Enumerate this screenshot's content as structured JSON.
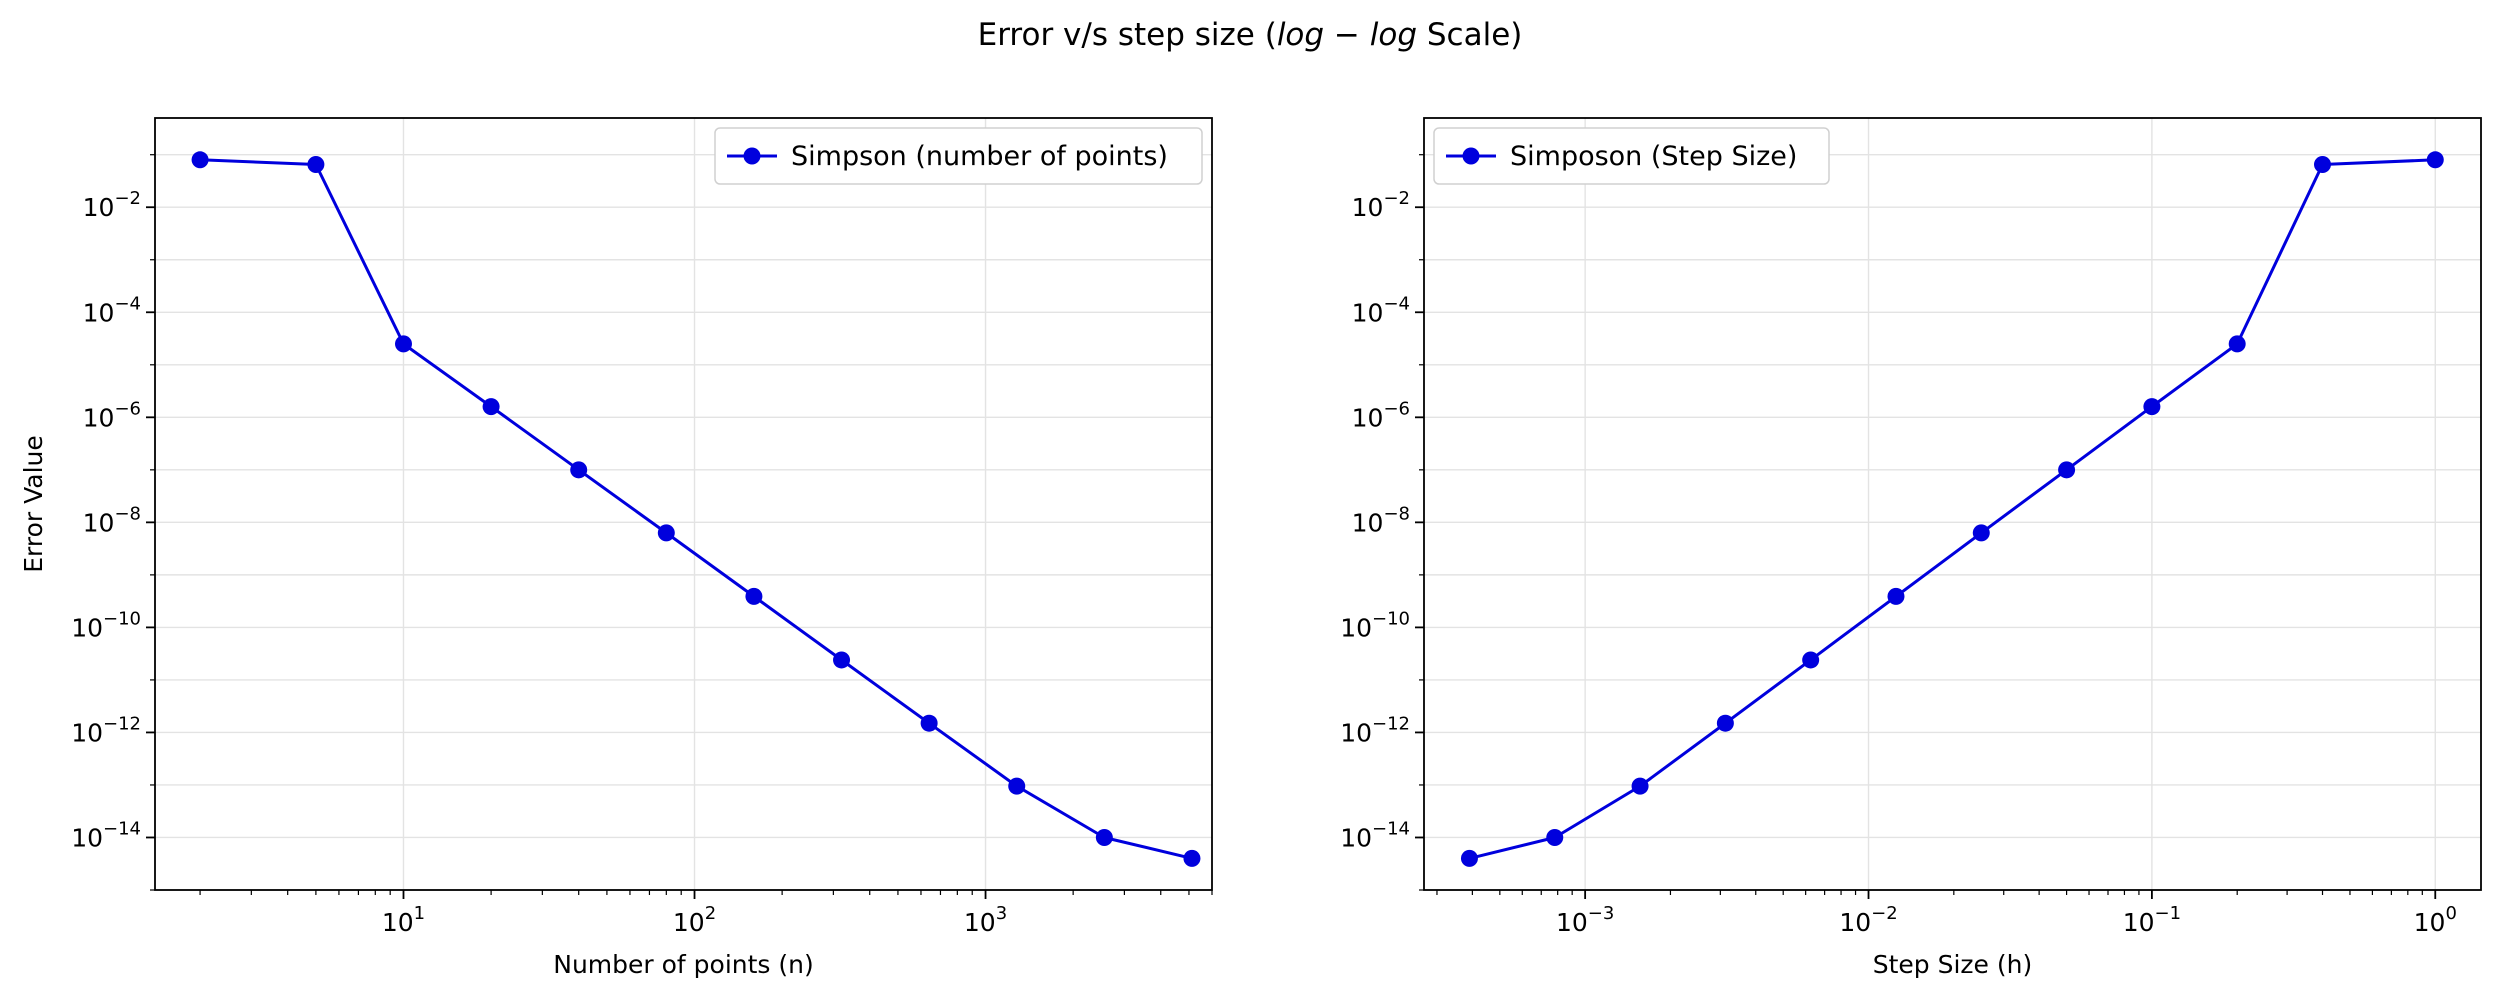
{
  "figure": {
    "title_prefix": "Error v/s step size (",
    "title_math": "log − log",
    "title_suffix": " Scale)"
  },
  "chart_data": [
    {
      "type": "line",
      "xscale": "log",
      "yscale": "log",
      "xlabel": "Number of points (n)",
      "ylabel": "Error Value",
      "xlim": [
        1.4,
        6000
      ],
      "ylim": [
        1e-15,
        0.5
      ],
      "x_ticks": [
        {
          "base": "10",
          "exp": "1",
          "value": 10
        },
        {
          "base": "10",
          "exp": "2",
          "value": 100
        },
        {
          "base": "10",
          "exp": "3",
          "value": 1000
        }
      ],
      "y_ticks": [
        {
          "base": "10",
          "exp": "−2",
          "value": 0.01
        },
        {
          "base": "10",
          "exp": "−4",
          "value": 0.0001
        },
        {
          "base": "10",
          "exp": "−6",
          "value": 1e-06
        },
        {
          "base": "10",
          "exp": "−8",
          "value": 1e-08
        },
        {
          "base": "10",
          "exp": "−10",
          "value": 1e-10
        },
        {
          "base": "10",
          "exp": "−12",
          "value": 1e-12
        },
        {
          "base": "10",
          "exp": "−14",
          "value": 1e-14
        }
      ],
      "grid": true,
      "legend_position": "upper-right",
      "series": [
        {
          "name": "Simpson (number of points)",
          "color": "#0000dd",
          "marker": "circle",
          "x": [
            2,
            5,
            10,
            20,
            40,
            80,
            160,
            320,
            640,
            1280,
            2560,
            5120
          ],
          "y": [
            0.08,
            0.065,
            2.5e-05,
            1.6e-06,
            1e-07,
            6.3e-09,
            3.9e-10,
            2.4e-11,
            1.5e-12,
            9.5e-14,
            1e-14,
            4e-15
          ]
        }
      ]
    },
    {
      "type": "line",
      "xscale": "log",
      "yscale": "log",
      "xlabel": "Step Size (h)",
      "ylabel": "",
      "xlim": [
        0.00027,
        1.45
      ],
      "ylim": [
        1e-15,
        0.5
      ],
      "x_ticks": [
        {
          "base": "10",
          "exp": "−3",
          "value": 0.001
        },
        {
          "base": "10",
          "exp": "−2",
          "value": 0.01
        },
        {
          "base": "10",
          "exp": "−1",
          "value": 0.1
        },
        {
          "base": "10",
          "exp": "0",
          "value": 1
        }
      ],
      "y_ticks": [
        {
          "base": "10",
          "exp": "−2",
          "value": 0.01
        },
        {
          "base": "10",
          "exp": "−4",
          "value": 0.0001
        },
        {
          "base": "10",
          "exp": "−6",
          "value": 1e-06
        },
        {
          "base": "10",
          "exp": "−8",
          "value": 1e-08
        },
        {
          "base": "10",
          "exp": "−10",
          "value": 1e-10
        },
        {
          "base": "10",
          "exp": "−12",
          "value": 1e-12
        },
        {
          "base": "10",
          "exp": "−14",
          "value": 1e-14
        }
      ],
      "grid": true,
      "legend_position": "upper-left",
      "series": [
        {
          "name": "Simposon (Step Size)",
          "color": "#0000dd",
          "marker": "circle",
          "x": [
            0.000390625,
            0.00078125,
            0.0015625,
            0.003125,
            0.00625,
            0.0125,
            0.025,
            0.05,
            0.1,
            0.2,
            0.4,
            1.0
          ],
          "y": [
            4e-15,
            1e-14,
            9.5e-14,
            1.5e-12,
            2.4e-11,
            3.9e-10,
            6.3e-09,
            1e-07,
            1.6e-06,
            2.5e-05,
            0.065,
            0.08
          ]
        }
      ]
    }
  ]
}
